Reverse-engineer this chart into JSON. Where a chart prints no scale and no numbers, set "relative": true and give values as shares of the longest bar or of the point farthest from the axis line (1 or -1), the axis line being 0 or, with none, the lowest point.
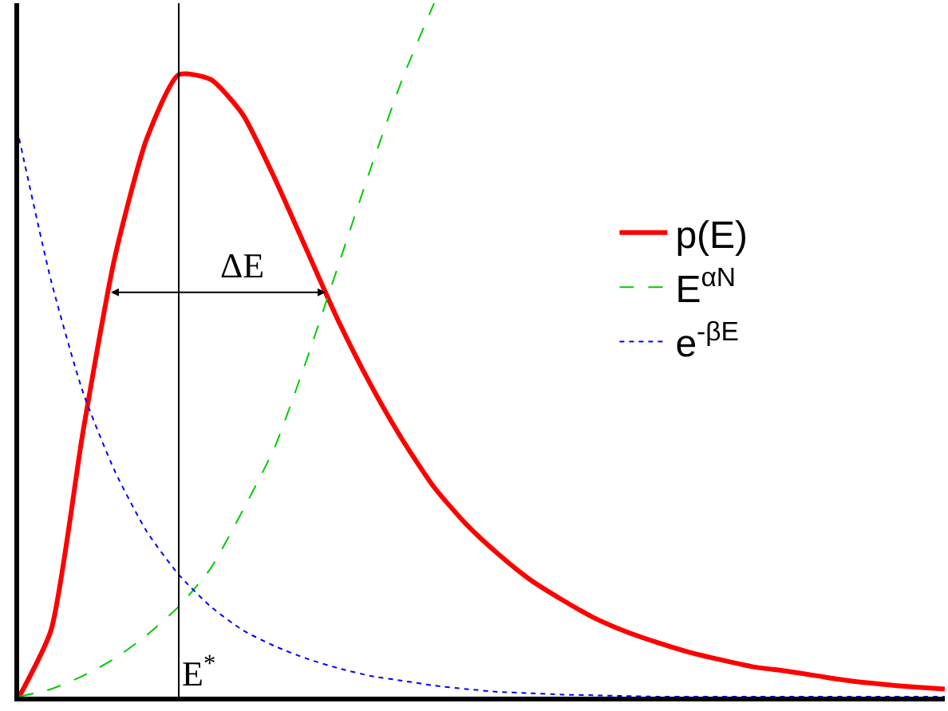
{
  "chart_data": {
    "type": "line",
    "relative": true,
    "categories": [
      null,
      null,
      null,
      null,
      null,
      null,
      null,
      null,
      null,
      null,
      null,
      null,
      null,
      null,
      null,
      null,
      null,
      null,
      null,
      null,
      null,
      null,
      null,
      null,
      null,
      null,
      null,
      null,
      null,
      null
    ],
    "series": [
      {
        "name": "p(E)",
        "color": "#ff0000",
        "line_style": "solid",
        "values": [
          0,
          0.096,
          0.382,
          0.634,
          0.805,
          0.897,
          0.89,
          0.84,
          0.748,
          0.645,
          0.542,
          0.451,
          0.371,
          0.302,
          0.249,
          0.206,
          0.169,
          0.14,
          0.114,
          0.094,
          0.078,
          0.064,
          0.053,
          0.043,
          0.037,
          0.03,
          0.023,
          0.018,
          0.014,
          0.011
        ]
      },
      {
        "name": "E$^{αN}$",
        "color": "#00cc00",
        "line_style": "dashed",
        "values": [
          0,
          0.011,
          0.03,
          0.055,
          0.089,
          0.13,
          0.185,
          0.268,
          0.359,
          0.485,
          0.622,
          0.76,
          0.89,
          1.0,
          null,
          null,
          null,
          null,
          null,
          null,
          null,
          null,
          null,
          null,
          null,
          null,
          null,
          null,
          null,
          null
        ]
      },
      {
        "name": "e$^{-βE}$",
        "color": "#0000ff",
        "line_style": "dotted",
        "values": [
          0.805,
          0.6,
          0.439,
          0.325,
          0.238,
          0.176,
          0.13,
          0.096,
          0.073,
          0.055,
          0.041,
          0.03,
          0.023,
          0.016,
          0.011,
          0.007,
          0.005,
          0.003,
          0.002,
          0.001,
          0,
          0,
          0,
          0,
          0,
          0,
          0,
          0,
          0,
          0
        ]
      }
    ],
    "annotations": [
      "ΔE",
      "E$^{*}$"
    ],
    "legend": "right",
    "marker": "none"
  }
}
